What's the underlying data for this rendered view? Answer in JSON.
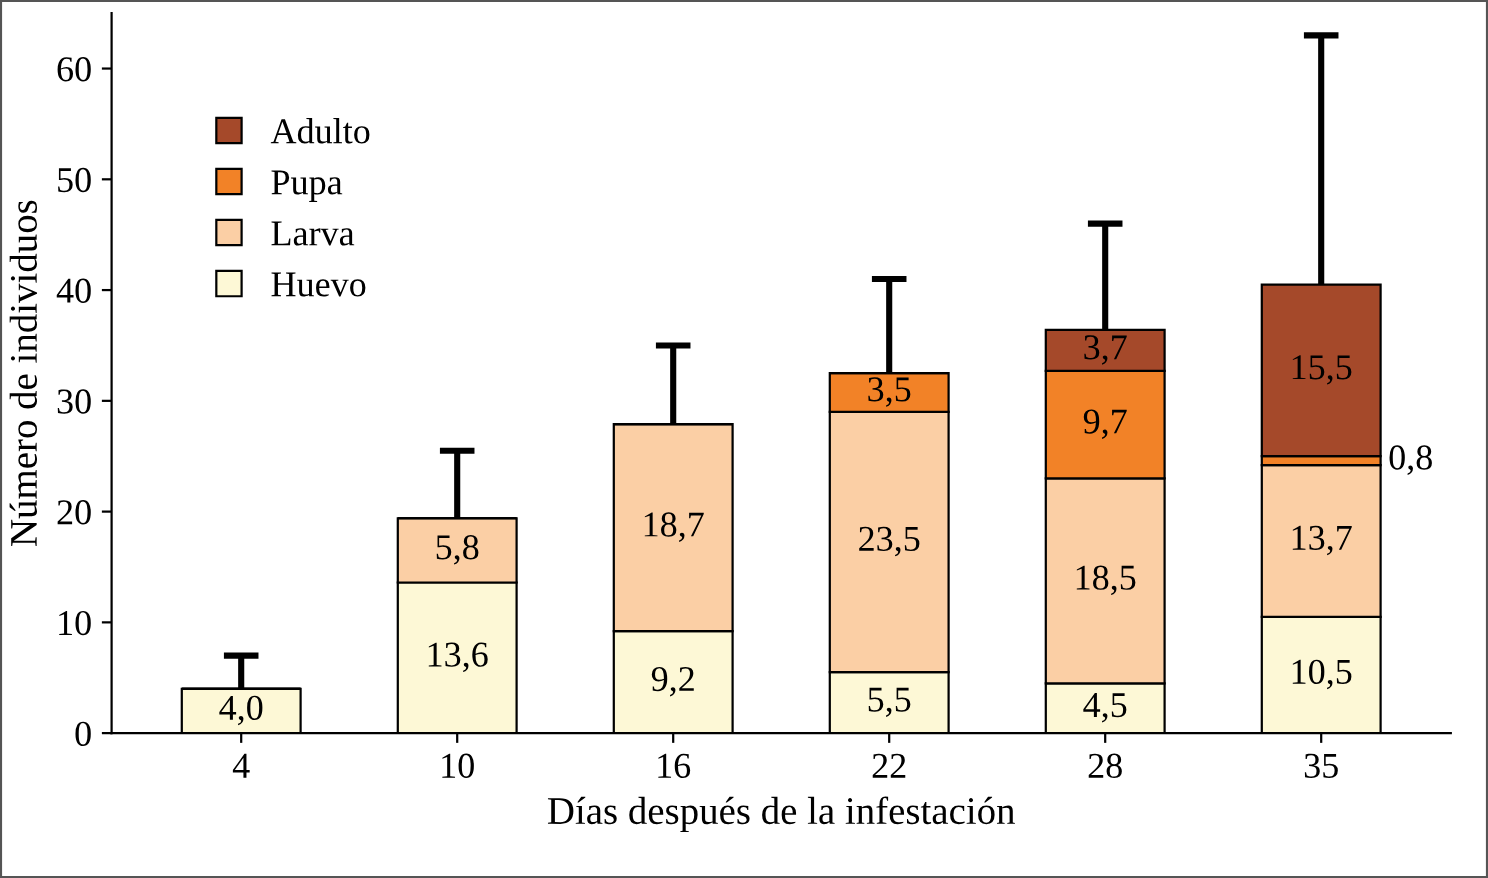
{
  "chart_data": {
    "type": "bar",
    "stacked": true,
    "xlabel": "Días después de la infestación",
    "ylabel": "Número de individuos",
    "categories": [
      "4",
      "10",
      "16",
      "22",
      "28",
      "35"
    ],
    "series": [
      {
        "name": "Huevo",
        "color": "#fdf8d6",
        "values": [
          4.0,
          13.6,
          9.2,
          5.5,
          4.5,
          10.5
        ],
        "value_labels": [
          "4,0",
          "13,6",
          "9,2",
          "5,5",
          "4,5",
          "10,5"
        ],
        "errors": [
          [
            4.0,
            7
          ],
          null,
          null,
          null,
          null,
          null
        ]
      },
      {
        "name": "Larva",
        "color": "#fbcfa5",
        "values": [
          null,
          5.8,
          18.7,
          23.5,
          18.5,
          13.7
        ],
        "value_labels": [
          null,
          "5,8",
          "18,7",
          "23,5",
          "18,5",
          "13,7"
        ],
        "errors": [
          null,
          [
            19.4,
            25.5
          ],
          [
            27.9,
            35
          ],
          null,
          null,
          null
        ]
      },
      {
        "name": "Pupa",
        "color": "#f28227",
        "values": [
          null,
          null,
          null,
          3.5,
          9.7,
          0.8
        ],
        "value_labels": [
          null,
          null,
          null,
          "3,5",
          "9,7",
          "0,8"
        ],
        "errors": [
          null,
          null,
          null,
          [
            32.5,
            41
          ],
          null,
          null
        ]
      },
      {
        "name": "Adulto",
        "color": "#a5492a",
        "values": [
          null,
          null,
          null,
          null,
          3.7,
          15.5
        ],
        "value_labels": [
          null,
          null,
          null,
          null,
          "3,7",
          "15,5"
        ],
        "errors": [
          null,
          null,
          null,
          null,
          [
            36.4,
            46
          ],
          [
            40.5,
            63
          ]
        ]
      }
    ],
    "ylim": [
      0,
      65
    ],
    "yticks": [
      0,
      10,
      20,
      30,
      40,
      50,
      60
    ],
    "grid": false,
    "legend": "top left"
  }
}
